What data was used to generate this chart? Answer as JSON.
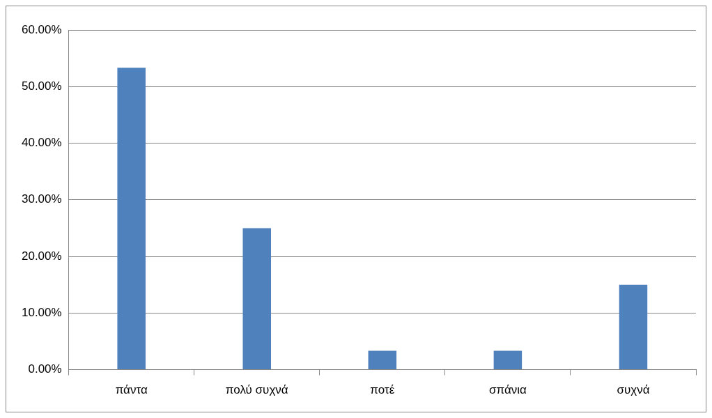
{
  "chart_data": {
    "type": "bar",
    "categories": [
      "πάντα",
      "πολύ συχνά",
      "ποτέ",
      "σπάνια",
      "συχνά"
    ],
    "values": [
      53.33,
      25,
      3.33,
      3.33,
      15
    ],
    "color": "#4f81bd",
    "ylim": [
      0,
      60
    ],
    "yticks": [
      {
        "value": 0,
        "label": "0.00%"
      },
      {
        "value": 10,
        "label": "10.00%"
      },
      {
        "value": 20,
        "label": "20.00%"
      },
      {
        "value": 30,
        "label": "30.00%"
      },
      {
        "value": 40,
        "label": "40.00%"
      },
      {
        "value": 50,
        "label": "50.00%"
      },
      {
        "value": 60,
        "label": "60.00%"
      }
    ],
    "grid": "y",
    "legend": false
  }
}
